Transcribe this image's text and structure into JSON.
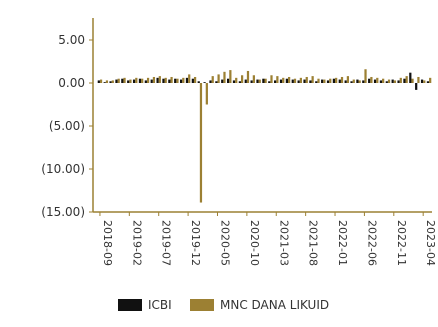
{
  "chart_data": {
    "type": "bar",
    "x": [
      "2018-09",
      "2018-10",
      "2018-11",
      "2018-12",
      "2019-01",
      "2019-02",
      "2019-03",
      "2019-04",
      "2019-05",
      "2019-06",
      "2019-07",
      "2019-08",
      "2019-09",
      "2019-10",
      "2019-11",
      "2019-12",
      "2020-01",
      "2020-02",
      "2020-03",
      "2020-04",
      "2020-05",
      "2020-06",
      "2020-07",
      "2020-08",
      "2020-09",
      "2020-10",
      "2020-11",
      "2020-12",
      "2021-01",
      "2021-02",
      "2021-03",
      "2021-04",
      "2021-05",
      "2021-06",
      "2021-07",
      "2021-08",
      "2021-09",
      "2021-10",
      "2021-11",
      "2021-12",
      "2022-01",
      "2022-02",
      "2022-03",
      "2022-04",
      "2022-05",
      "2022-06",
      "2022-07",
      "2022-08",
      "2022-09",
      "2022-10",
      "2022-11",
      "2022-12",
      "2023-01",
      "2023-02",
      "2023-03",
      "2023-04",
      "2023-05"
    ],
    "series": [
      {
        "name": "ICBI",
        "color": "#111111",
        "values": [
          0.3,
          0.1,
          0.2,
          0.4,
          0.5,
          0.3,
          0.4,
          0.5,
          0.3,
          0.4,
          0.6,
          0.5,
          0.4,
          0.5,
          0.4,
          0.6,
          0.5,
          0.2,
          0.1,
          0.3,
          0.2,
          0.4,
          0.5,
          0.3,
          0.2,
          0.4,
          0.3,
          0.4,
          0.5,
          0.2,
          0.3,
          0.4,
          0.5,
          0.4,
          0.3,
          0.4,
          0.3,
          0.2,
          0.4,
          0.3,
          0.5,
          0.4,
          0.3,
          0.2,
          0.4,
          0.3,
          0.5,
          0.4,
          0.3,
          0.2,
          0.4,
          0.3,
          0.5,
          1.2,
          -0.8,
          0.4,
          0.2
        ]
      },
      {
        "name": "MNC DANA LIKUID",
        "color": "#9c8033",
        "values": [
          0.4,
          0.3,
          0.3,
          0.5,
          0.6,
          0.4,
          0.6,
          0.5,
          0.6,
          0.7,
          0.8,
          0.6,
          0.7,
          0.5,
          0.6,
          1.0,
          0.7,
          -13.9,
          -2.5,
          0.8,
          1.0,
          1.3,
          1.5,
          0.6,
          0.9,
          1.4,
          0.9,
          0.4,
          0.5,
          0.9,
          0.8,
          0.6,
          0.7,
          0.5,
          0.6,
          0.7,
          0.8,
          0.5,
          0.4,
          0.5,
          0.6,
          0.7,
          0.8,
          0.4,
          0.3,
          1.6,
          0.7,
          0.6,
          0.5,
          0.4,
          0.3,
          0.6,
          0.8,
          0.5,
          0.7,
          0.3,
          0.6
        ]
      }
    ],
    "y_ticks": [
      "5.00",
      "0.00",
      "(5.00)",
      "(10.00)",
      "(15.00)"
    ],
    "y_tick_values": [
      5,
      0,
      -5,
      -10,
      -15
    ],
    "ylim": [
      -15,
      5
    ],
    "x_tick_labels": [
      "2018-09",
      "2019-02",
      "2019-07",
      "2019-12",
      "2020-05",
      "2020-10",
      "2021-03",
      "2021-08",
      "2022-01",
      "2022-06",
      "2022-11",
      "2023-04"
    ],
    "axis_color": "#9c8033",
    "legend_position": "bottom",
    "grid": false
  },
  "legend": {
    "items": [
      {
        "label": "ICBI",
        "color": "#111111"
      },
      {
        "label": "MNC DANA LIKUID",
        "color": "#9c8033"
      }
    ]
  }
}
